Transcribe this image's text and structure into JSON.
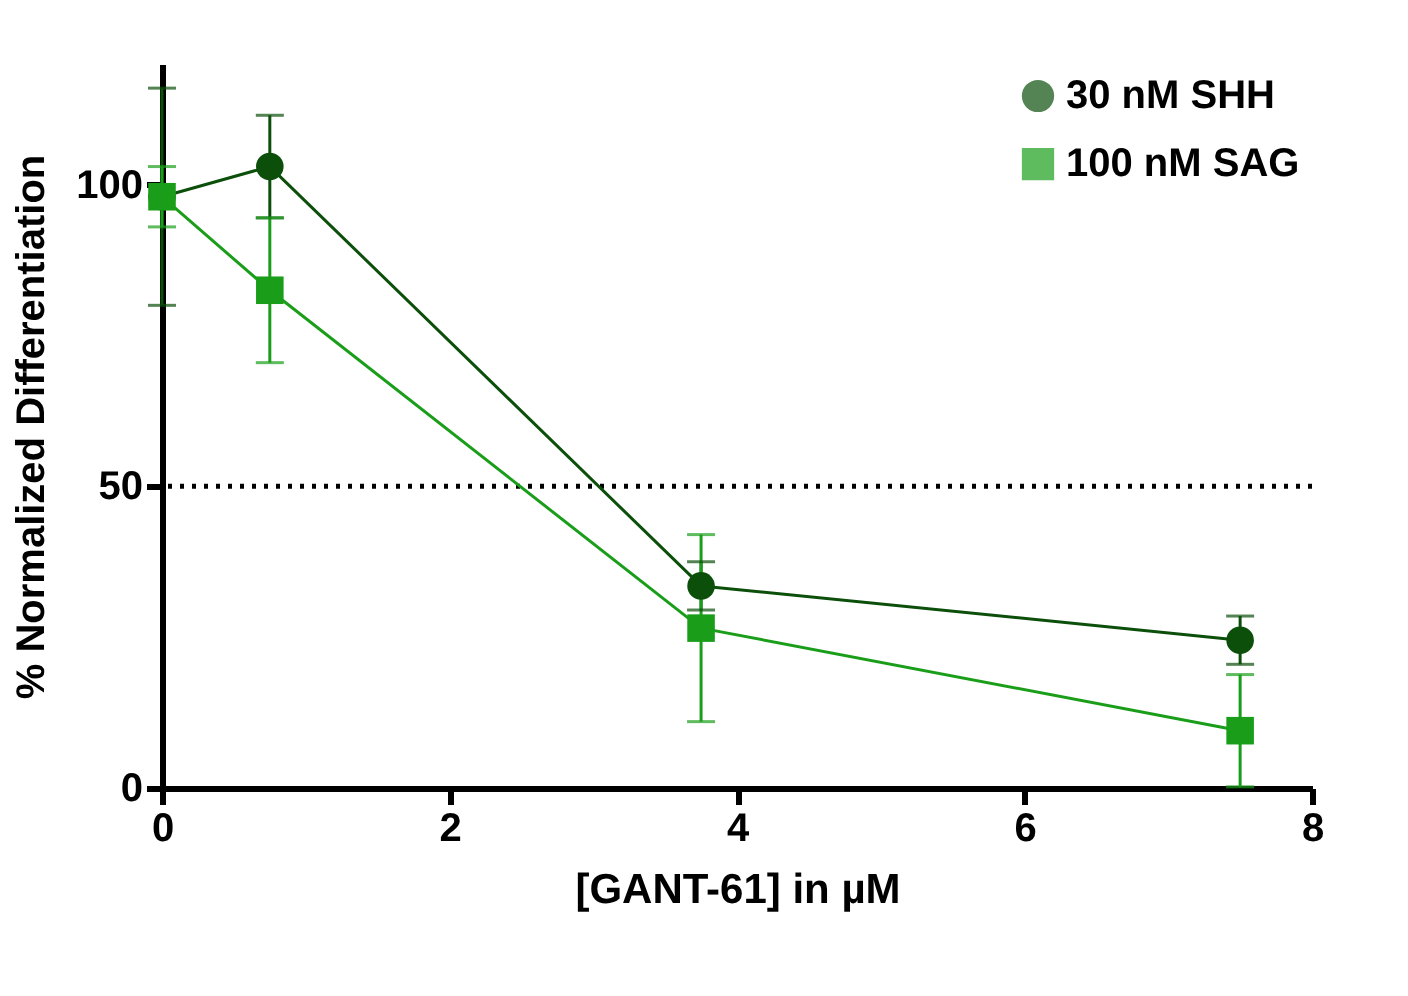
{
  "chart_data": {
    "type": "line",
    "xlabel": "[GANT-61] in µM",
    "ylabel": "% Normalized Differentiation",
    "x": [
      0,
      0.75,
      3.75,
      7.5
    ],
    "series": [
      {
        "name": "30 nM SHH",
        "color": "#0b4f0b",
        "marker": "circle",
        "values": [
          98,
          103,
          33.5,
          24.5
        ],
        "errors": [
          18,
          8.5,
          4,
          4
        ]
      },
      {
        "name": "100 nM SAG",
        "color": "#1a9e1a",
        "marker": "square",
        "values": [
          98,
          82.5,
          26.5,
          9.5
        ],
        "errors": [
          5,
          12,
          15.5,
          9.3
        ]
      }
    ],
    "xlim": [
      0,
      8
    ],
    "xticks": [
      0,
      2,
      4,
      6,
      8
    ],
    "ylim": [
      0,
      120
    ],
    "yticks": [
      0,
      50,
      100
    ],
    "ref_lines": [
      {
        "axis": "y",
        "value": 50,
        "line_style": "dotted",
        "color": "#000000"
      }
    ],
    "grid": false,
    "legend": "top right",
    "line_style": "solid"
  }
}
